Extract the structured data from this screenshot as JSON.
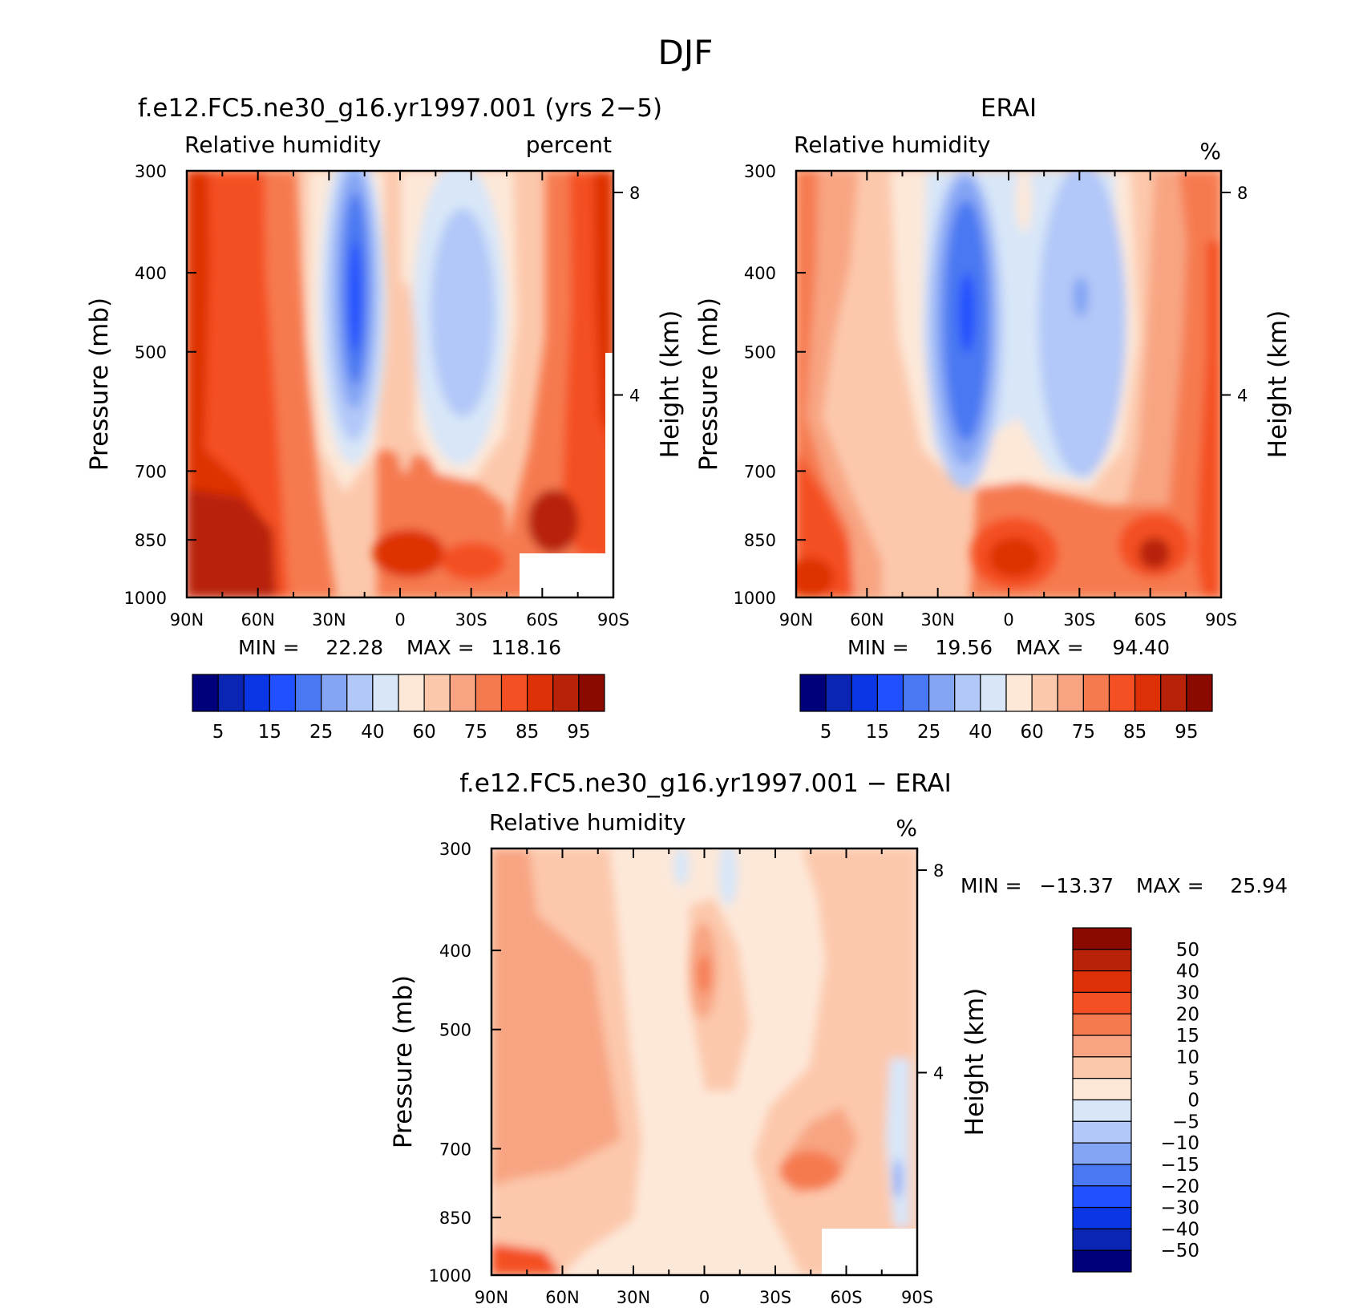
{
  "figure": {
    "title": "DJF"
  },
  "chart_data": [
    {
      "type": "heatmap",
      "title": "f.e12.FC5.ne30_g16.yr1997.001 (yrs 2-5)",
      "subtitle": "Relative humidity",
      "units": "percent",
      "ylabel": "Pressure (mb)",
      "ylabel_right": "Height (km)",
      "x": [
        "90N",
        "60N",
        "30N",
        "0",
        "30S",
        "60S",
        "90S"
      ],
      "y": [
        300,
        400,
        500,
        700,
        850,
        1000
      ],
      "y_right": [
        "8",
        "4"
      ],
      "stats": {
        "min_label": "MIN =",
        "min": "22.28",
        "max_label": "MAX =",
        "max": "118.16"
      },
      "colorbar": {
        "levels": [
          "5",
          "15",
          "25",
          "40",
          "60",
          "75",
          "85",
          "95"
        ],
        "colors": [
          "#00007a",
          "#0a24b4",
          "#0a36e6",
          "#2050ff",
          "#4a78f2",
          "#84a4f4",
          "#b2c8f8",
          "#d8e6f8",
          "#fde8d8",
          "#fcc8ac",
          "#f8a482",
          "#f67a50",
          "#f45024",
          "#de3006",
          "#b82208",
          "#8a0a00"
        ]
      }
    },
    {
      "type": "heatmap",
      "title": "ERAI",
      "subtitle": "Relative humidity",
      "units": "%",
      "ylabel": "Pressure (mb)",
      "ylabel_right": "Height (km)",
      "x": [
        "90N",
        "60N",
        "30N",
        "0",
        "30S",
        "60S",
        "90S"
      ],
      "y": [
        300,
        400,
        500,
        700,
        850,
        1000
      ],
      "y_right": [
        "8",
        "4"
      ],
      "stats": {
        "min_label": "MIN =",
        "min": "19.56",
        "max_label": "MAX =",
        "max": "94.40"
      },
      "colorbar": {
        "levels": [
          "5",
          "15",
          "25",
          "40",
          "60",
          "75",
          "85",
          "95"
        ],
        "colors": [
          "#00007a",
          "#0a24b4",
          "#0a36e6",
          "#2050ff",
          "#4a78f2",
          "#84a4f4",
          "#b2c8f8",
          "#d8e6f8",
          "#fde8d8",
          "#fcc8ac",
          "#f8a482",
          "#f67a50",
          "#f45024",
          "#de3006",
          "#b82208",
          "#8a0a00"
        ]
      }
    },
    {
      "type": "heatmap",
      "title": "f.e12.FC5.ne30_g16.yr1997.001 - ERAI",
      "subtitle": "Relative humidity",
      "units": "%",
      "ylabel": "Pressure (mb)",
      "ylabel_right": "Height (km)",
      "x": [
        "90N",
        "60N",
        "30N",
        "0",
        "30S",
        "60S",
        "90S"
      ],
      "y": [
        300,
        400,
        500,
        700,
        850,
        1000
      ],
      "y_right": [
        "8",
        "4"
      ],
      "stats": {
        "min_label": "MIN =",
        "min": "-13.37",
        "max_label": "MAX =",
        "max": "25.94"
      },
      "colorbar": {
        "levels": [
          "50",
          "40",
          "30",
          "20",
          "15",
          "10",
          "5",
          "0",
          "-5",
          "-10",
          "-15",
          "-20",
          "-30",
          "-40",
          "-50"
        ],
        "colors": [
          "#8a0a00",
          "#b82208",
          "#de3006",
          "#f45024",
          "#f67a50",
          "#f8a482",
          "#fcc8ac",
          "#fde8d8",
          "#d8e6f8",
          "#b2c8f8",
          "#84a4f4",
          "#4a78f2",
          "#2050ff",
          "#0a36e6",
          "#0a24b4",
          "#00007a"
        ]
      }
    }
  ]
}
